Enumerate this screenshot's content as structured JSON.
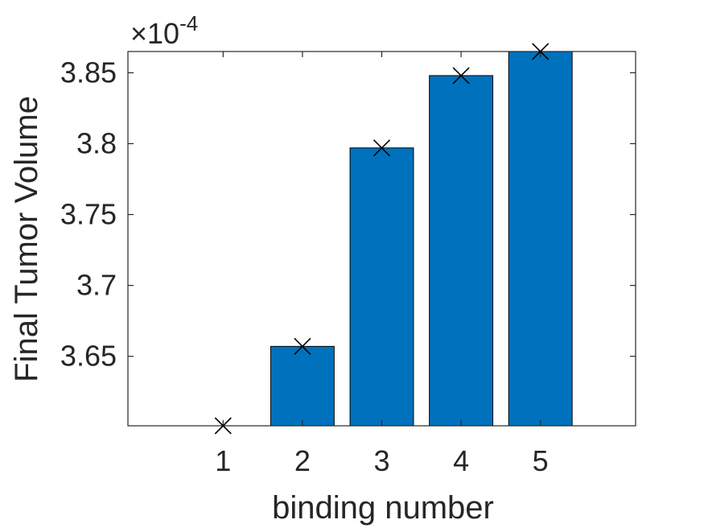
{
  "chart_data": {
    "type": "bar",
    "categories": [
      "1",
      "2",
      "3",
      "4",
      "5"
    ],
    "x": [
      1,
      2,
      3,
      4,
      5
    ],
    "values": [
      0.0003601,
      0.0003657,
      0.0003797,
      0.0003848,
      0.0003865
    ],
    "markers": {
      "symbol": "×",
      "x": [
        1,
        2,
        3,
        4,
        5
      ],
      "y": [
        0.0003601,
        0.0003657,
        0.0003797,
        0.0003848,
        0.0003865
      ]
    },
    "title": "",
    "xlabel": "binding number",
    "ylabel": "Final Tumor Volume",
    "xlim": [
      -0.2,
      6.2
    ],
    "ylim": [
      0.0003601,
      0.0003865
    ],
    "yticks": [
      0.000365,
      0.00037,
      0.000375,
      0.00038,
      0.000385
    ],
    "ytick_labels": [
      "3.65",
      "3.7",
      "3.75",
      "3.8",
      "3.85"
    ],
    "xticks": [
      1,
      2,
      3,
      4,
      5
    ],
    "xtick_labels": [
      "1",
      "2",
      "3",
      "4",
      "5"
    ],
    "exponent": {
      "prefix": "×10",
      "power": "-4"
    },
    "grid": false,
    "legend": "none",
    "colors": {
      "bar": "#0072bd",
      "bar_edge": "#000000",
      "marker": "#000000",
      "axes": "#262626"
    }
  }
}
